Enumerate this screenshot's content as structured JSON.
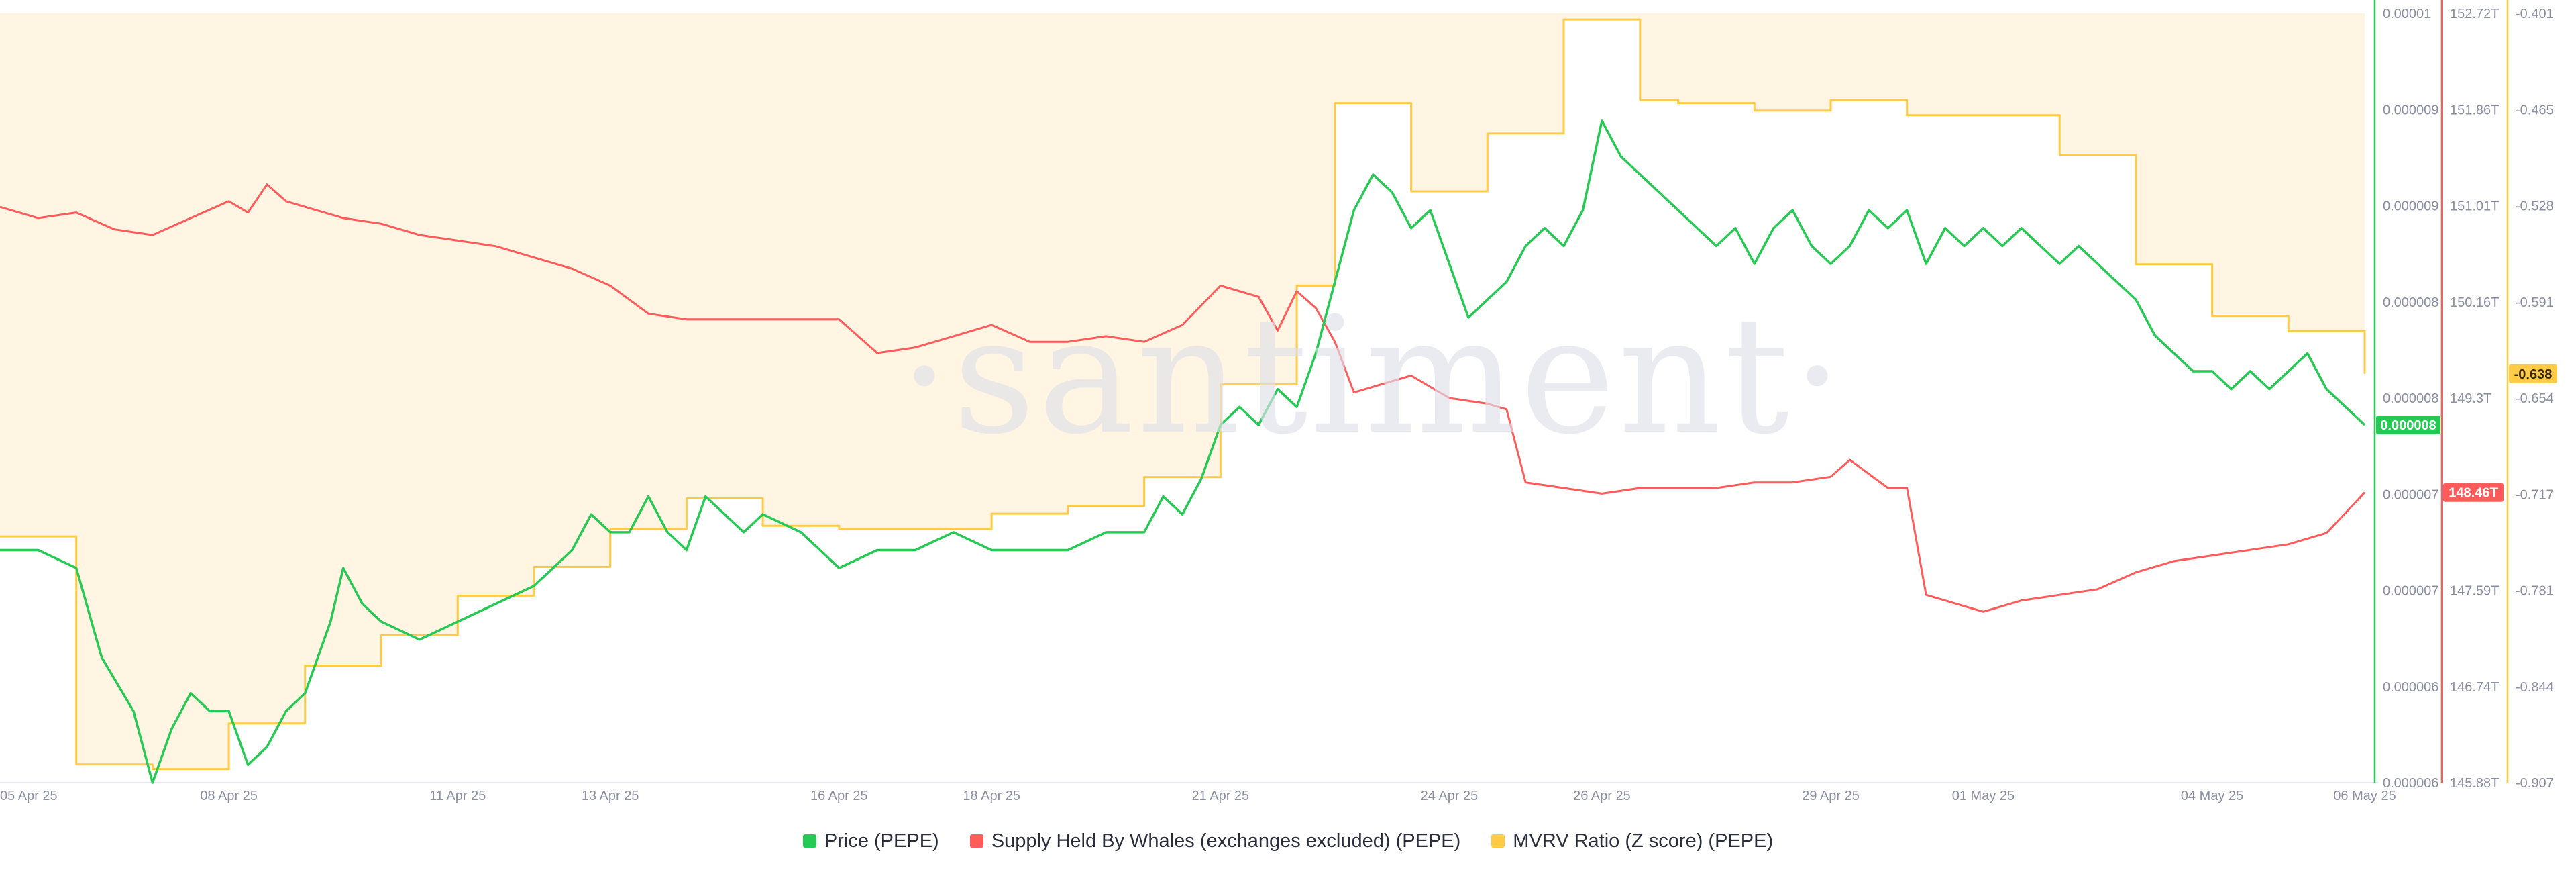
{
  "watermark": "·santiment·",
  "chart_data": {
    "type": "line",
    "x_type": "date",
    "xlim": [
      "2025-04-05",
      "2025-05-06"
    ],
    "x_ticks": [
      {
        "label": "05 Apr 25",
        "date": "2025-04-05"
      },
      {
        "label": "08 Apr 25",
        "date": "2025-04-08"
      },
      {
        "label": "11 Apr 25",
        "date": "2025-04-11"
      },
      {
        "label": "13 Apr 25",
        "date": "2025-04-13"
      },
      {
        "label": "16 Apr 25",
        "date": "2025-04-16"
      },
      {
        "label": "18 Apr 25",
        "date": "2025-04-18"
      },
      {
        "label": "21 Apr 25",
        "date": "2025-04-21"
      },
      {
        "label": "24 Apr 25",
        "date": "2025-04-24"
      },
      {
        "label": "26 Apr 25",
        "date": "2025-04-26"
      },
      {
        "label": "29 Apr 25",
        "date": "2025-04-29"
      },
      {
        "label": "01 May 25",
        "date": "2025-05-01"
      },
      {
        "label": "04 May 25",
        "date": "2025-05-04"
      },
      {
        "label": "06 May 25",
        "date": "2025-05-06"
      }
    ],
    "axes": {
      "price": {
        "color": "#26c953",
        "range": [
          5.8e-06,
          1.01e-05
        ],
        "tick_labels": [
          "0.00001",
          "0.000009",
          "0.000009",
          "0.000008",
          "0.000008",
          "0.000007",
          "0.000007",
          "0.000006",
          "0.000006"
        ],
        "current_label": "0.000008"
      },
      "whales": {
        "color": "#ff5b5b",
        "range": [
          145.88,
          152.72
        ],
        "tick_labels": [
          "152.72T",
          "151.86T",
          "151.01T",
          "150.16T",
          "149.3T",
          "148.45T",
          "147.59T",
          "146.74T",
          "145.88T"
        ],
        "current_label": "148.46T"
      },
      "mvrv": {
        "color": "#ffcb47",
        "range": [
          -0.907,
          -0.401
        ],
        "tick_labels": [
          "-0.401",
          "-0.465",
          "-0.528",
          "-0.591",
          "-0.654",
          "-0.717",
          "-0.781",
          "-0.844",
          "-0.907"
        ],
        "current_label": "-0.638"
      }
    },
    "series": [
      {
        "name": "Price (PEPE)",
        "color": "#26c953",
        "axis": "price",
        "points": [
          [
            "2025-04-05",
            7.1e-06
          ],
          [
            "2025-04-05T12:00",
            7.1e-06
          ],
          [
            "2025-04-06",
            7e-06
          ],
          [
            "2025-04-06T08:00",
            6.5e-06
          ],
          [
            "2025-04-06T18:00",
            6.2e-06
          ],
          [
            "2025-04-07",
            5.8e-06
          ],
          [
            "2025-04-07T06:00",
            6.1e-06
          ],
          [
            "2025-04-07T12:00",
            6.3e-06
          ],
          [
            "2025-04-07T18:00",
            6.2e-06
          ],
          [
            "2025-04-08",
            6.2e-06
          ],
          [
            "2025-04-08T06:00",
            5.9e-06
          ],
          [
            "2025-04-08T12:00",
            6e-06
          ],
          [
            "2025-04-08T18:00",
            6.2e-06
          ],
          [
            "2025-04-09",
            6.3e-06
          ],
          [
            "2025-04-09T08:00",
            6.7e-06
          ],
          [
            "2025-04-09T12:00",
            7e-06
          ],
          [
            "2025-04-09T18:00",
            6.8e-06
          ],
          [
            "2025-04-10",
            6.7e-06
          ],
          [
            "2025-04-10T12:00",
            6.6e-06
          ],
          [
            "2025-04-11",
            6.7e-06
          ],
          [
            "2025-04-11T12:00",
            6.8e-06
          ],
          [
            "2025-04-12",
            6.9e-06
          ],
          [
            "2025-04-12T06:00",
            7e-06
          ],
          [
            "2025-04-12T12:00",
            7.1e-06
          ],
          [
            "2025-04-12T18:00",
            7.3e-06
          ],
          [
            "2025-04-13",
            7.2e-06
          ],
          [
            "2025-04-13T06:00",
            7.2e-06
          ],
          [
            "2025-04-13T12:00",
            7.4e-06
          ],
          [
            "2025-04-13T18:00",
            7.2e-06
          ],
          [
            "2025-04-14",
            7.1e-06
          ],
          [
            "2025-04-14T06:00",
            7.4e-06
          ],
          [
            "2025-04-14T12:00",
            7.3e-06
          ],
          [
            "2025-04-14T18:00",
            7.2e-06
          ],
          [
            "2025-04-15",
            7.3e-06
          ],
          [
            "2025-04-15T12:00",
            7.2e-06
          ],
          [
            "2025-04-16",
            7e-06
          ],
          [
            "2025-04-16T12:00",
            7.1e-06
          ],
          [
            "2025-04-17",
            7.1e-06
          ],
          [
            "2025-04-17T12:00",
            7.2e-06
          ],
          [
            "2025-04-18",
            7.1e-06
          ],
          [
            "2025-04-18T12:00",
            7.1e-06
          ],
          [
            "2025-04-19",
            7.1e-06
          ],
          [
            "2025-04-19T12:00",
            7.2e-06
          ],
          [
            "2025-04-20",
            7.2e-06
          ],
          [
            "2025-04-20T06:00",
            7.4e-06
          ],
          [
            "2025-04-20T12:00",
            7.3e-06
          ],
          [
            "2025-04-20T18:00",
            7.5e-06
          ],
          [
            "2025-04-21",
            7.8e-06
          ],
          [
            "2025-04-21T06:00",
            7.9e-06
          ],
          [
            "2025-04-21T12:00",
            7.8e-06
          ],
          [
            "2025-04-21T18:00",
            8e-06
          ],
          [
            "2025-04-22",
            7.9e-06
          ],
          [
            "2025-04-22T06:00",
            8.2e-06
          ],
          [
            "2025-04-22T12:00",
            8.6e-06
          ],
          [
            "2025-04-22T18:00",
            9e-06
          ],
          [
            "2025-04-23",
            9.2e-06
          ],
          [
            "2025-04-23T06:00",
            9.1e-06
          ],
          [
            "2025-04-23T12:00",
            8.9e-06
          ],
          [
            "2025-04-23T18:00",
            9e-06
          ],
          [
            "2025-04-24",
            8.7e-06
          ],
          [
            "2025-04-24T06:00",
            8.4e-06
          ],
          [
            "2025-04-24T12:00",
            8.5e-06
          ],
          [
            "2025-04-24T18:00",
            8.6e-06
          ],
          [
            "2025-04-25",
            8.8e-06
          ],
          [
            "2025-04-25T06:00",
            8.9e-06
          ],
          [
            "2025-04-25T12:00",
            8.8e-06
          ],
          [
            "2025-04-25T18:00",
            9e-06
          ],
          [
            "2025-04-26",
            9.5e-06
          ],
          [
            "2025-04-26T06:00",
            9.3e-06
          ],
          [
            "2025-04-26T12:00",
            9.2e-06
          ],
          [
            "2025-04-26T18:00",
            9.1e-06
          ],
          [
            "2025-04-27",
            9e-06
          ],
          [
            "2025-04-27T06:00",
            8.9e-06
          ],
          [
            "2025-04-27T12:00",
            8.8e-06
          ],
          [
            "2025-04-27T18:00",
            8.9e-06
          ],
          [
            "2025-04-28",
            8.7e-06
          ],
          [
            "2025-04-28T06:00",
            8.9e-06
          ],
          [
            "2025-04-28T12:00",
            9e-06
          ],
          [
            "2025-04-28T18:00",
            8.8e-06
          ],
          [
            "2025-04-29",
            8.7e-06
          ],
          [
            "2025-04-29T06:00",
            8.8e-06
          ],
          [
            "2025-04-29T12:00",
            9e-06
          ],
          [
            "2025-04-29T18:00",
            8.9e-06
          ],
          [
            "2025-04-30",
            9e-06
          ],
          [
            "2025-04-30T06:00",
            8.7e-06
          ],
          [
            "2025-04-30T12:00",
            8.9e-06
          ],
          [
            "2025-04-30T18:00",
            8.8e-06
          ],
          [
            "2025-05-01",
            8.9e-06
          ],
          [
            "2025-05-01T06:00",
            8.8e-06
          ],
          [
            "2025-05-01T12:00",
            8.9e-06
          ],
          [
            "2025-05-01T18:00",
            8.8e-06
          ],
          [
            "2025-05-02",
            8.7e-06
          ],
          [
            "2025-05-02T06:00",
            8.8e-06
          ],
          [
            "2025-05-02T12:00",
            8.7e-06
          ],
          [
            "2025-05-02T18:00",
            8.6e-06
          ],
          [
            "2025-05-03",
            8.5e-06
          ],
          [
            "2025-05-03T06:00",
            8.3e-06
          ],
          [
            "2025-05-03T12:00",
            8.2e-06
          ],
          [
            "2025-05-03T18:00",
            8.1e-06
          ],
          [
            "2025-05-04",
            8.1e-06
          ],
          [
            "2025-05-04T06:00",
            8e-06
          ],
          [
            "2025-05-04T12:00",
            8.1e-06
          ],
          [
            "2025-05-04T18:00",
            8e-06
          ],
          [
            "2025-05-05",
            8.1e-06
          ],
          [
            "2025-05-05T06:00",
            8.2e-06
          ],
          [
            "2025-05-05T12:00",
            8e-06
          ],
          [
            "2025-05-05T18:00",
            7.9e-06
          ],
          [
            "2025-05-06",
            7.8e-06
          ]
        ]
      },
      {
        "name": "Supply Held By Whales (exchanges excluded) (PEPE)",
        "color": "#ff5b5b",
        "axis": "whales",
        "points": [
          [
            "2025-04-05",
            151.0
          ],
          [
            "2025-04-05T12:00",
            150.9
          ],
          [
            "2025-04-06",
            150.95
          ],
          [
            "2025-04-06T12:00",
            150.8
          ],
          [
            "2025-04-07",
            150.75
          ],
          [
            "2025-04-07T12:00",
            150.9
          ],
          [
            "2025-04-08",
            151.05
          ],
          [
            "2025-04-08T06:00",
            150.95
          ],
          [
            "2025-04-08T12:00",
            151.2
          ],
          [
            "2025-04-08T18:00",
            151.05
          ],
          [
            "2025-04-09",
            151.0
          ],
          [
            "2025-04-09T12:00",
            150.9
          ],
          [
            "2025-04-10",
            150.85
          ],
          [
            "2025-04-10T12:00",
            150.75
          ],
          [
            "2025-04-11",
            150.7
          ],
          [
            "2025-04-11T12:00",
            150.65
          ],
          [
            "2025-04-12",
            150.55
          ],
          [
            "2025-04-12T12:00",
            150.45
          ],
          [
            "2025-04-13",
            150.3
          ],
          [
            "2025-04-13T12:00",
            150.05
          ],
          [
            "2025-04-14",
            150.0
          ],
          [
            "2025-04-15",
            150.0
          ],
          [
            "2025-04-16",
            150.0
          ],
          [
            "2025-04-16T12:00",
            149.7
          ],
          [
            "2025-04-17",
            149.75
          ],
          [
            "2025-04-17T12:00",
            149.85
          ],
          [
            "2025-04-18",
            149.95
          ],
          [
            "2025-04-18T12:00",
            149.8
          ],
          [
            "2025-04-19",
            149.8
          ],
          [
            "2025-04-19T12:00",
            149.85
          ],
          [
            "2025-04-20",
            149.8
          ],
          [
            "2025-04-20T12:00",
            149.95
          ],
          [
            "2025-04-21",
            150.3
          ],
          [
            "2025-04-21T12:00",
            150.2
          ],
          [
            "2025-04-21T18:00",
            149.9
          ],
          [
            "2025-04-22",
            150.25
          ],
          [
            "2025-04-22T06:00",
            150.1
          ],
          [
            "2025-04-22T12:00",
            149.8
          ],
          [
            "2025-04-22T18:00",
            149.35
          ],
          [
            "2025-04-23",
            149.4
          ],
          [
            "2025-04-23T12:00",
            149.5
          ],
          [
            "2025-04-24",
            149.3
          ],
          [
            "2025-04-24T12:00",
            149.25
          ],
          [
            "2025-04-24T18:00",
            149.2
          ],
          [
            "2025-04-25",
            148.55
          ],
          [
            "2025-04-25T12:00",
            148.5
          ],
          [
            "2025-04-26",
            148.45
          ],
          [
            "2025-04-26T12:00",
            148.5
          ],
          [
            "2025-04-27",
            148.5
          ],
          [
            "2025-04-27T12:00",
            148.5
          ],
          [
            "2025-04-28",
            148.55
          ],
          [
            "2025-04-28T12:00",
            148.55
          ],
          [
            "2025-04-29",
            148.6
          ],
          [
            "2025-04-29T06:00",
            148.75
          ],
          [
            "2025-04-29T18:00",
            148.5
          ],
          [
            "2025-04-30",
            148.5
          ],
          [
            "2025-04-30T06:00",
            147.55
          ],
          [
            "2025-04-30T12:00",
            147.5
          ],
          [
            "2025-05-01",
            147.4
          ],
          [
            "2025-05-01T12:00",
            147.5
          ],
          [
            "2025-05-02",
            147.55
          ],
          [
            "2025-05-02T12:00",
            147.6
          ],
          [
            "2025-05-03",
            147.75
          ],
          [
            "2025-05-03T12:00",
            147.85
          ],
          [
            "2025-05-04",
            147.9
          ],
          [
            "2025-05-04T12:00",
            147.95
          ],
          [
            "2025-05-05",
            148.0
          ],
          [
            "2025-05-05T12:00",
            148.1
          ],
          [
            "2025-05-06",
            148.46
          ]
        ]
      },
      {
        "name": "MVRV Ratio (Z score) (PEPE)",
        "color": "#ffcb47",
        "axis": "mvrv",
        "step": true,
        "points": [
          [
            "2025-04-05",
            -0.745
          ],
          [
            "2025-04-06",
            -0.895
          ],
          [
            "2025-04-07",
            -0.898
          ],
          [
            "2025-04-08",
            -0.868
          ],
          [
            "2025-04-09",
            -0.83
          ],
          [
            "2025-04-10",
            -0.81
          ],
          [
            "2025-04-11",
            -0.784
          ],
          [
            "2025-04-12",
            -0.765
          ],
          [
            "2025-04-13",
            -0.74
          ],
          [
            "2025-04-14",
            -0.72
          ],
          [
            "2025-04-15",
            -0.738
          ],
          [
            "2025-04-16",
            -0.74
          ],
          [
            "2025-04-17",
            -0.74
          ],
          [
            "2025-04-18",
            -0.73
          ],
          [
            "2025-04-19",
            -0.725
          ],
          [
            "2025-04-20",
            -0.706
          ],
          [
            "2025-04-21",
            -0.645
          ],
          [
            "2025-04-22",
            -0.58
          ],
          [
            "2025-04-22T12:00",
            -0.46
          ],
          [
            "2025-04-23",
            -0.46
          ],
          [
            "2025-04-23T12:00",
            -0.518
          ],
          [
            "2025-04-24",
            -0.518
          ],
          [
            "2025-04-24T12:00",
            -0.48
          ],
          [
            "2025-04-25",
            -0.48
          ],
          [
            "2025-04-25T12:00",
            -0.405
          ],
          [
            "2025-04-26",
            -0.405
          ],
          [
            "2025-04-26T12:00",
            -0.458
          ],
          [
            "2025-04-27",
            -0.46
          ],
          [
            "2025-04-28",
            -0.465
          ],
          [
            "2025-04-29",
            -0.458
          ],
          [
            "2025-04-30",
            -0.468
          ],
          [
            "2025-05-01",
            -0.468
          ],
          [
            "2025-05-02",
            -0.494
          ],
          [
            "2025-05-03",
            -0.566
          ],
          [
            "2025-05-04",
            -0.6
          ],
          [
            "2025-05-05",
            -0.61
          ],
          [
            "2025-05-06",
            -0.638
          ]
        ]
      }
    ],
    "legend": [
      {
        "name": "Price (PEPE)",
        "color": "#26c953"
      },
      {
        "name": "Supply Held By Whales (exchanges excluded) (PEPE)",
        "color": "#ff5b5b"
      },
      {
        "name": "MVRV Ratio (Z score) (PEPE)",
        "color": "#ffcb47"
      }
    ],
    "legend_position": "bottom-center",
    "grid": false
  }
}
